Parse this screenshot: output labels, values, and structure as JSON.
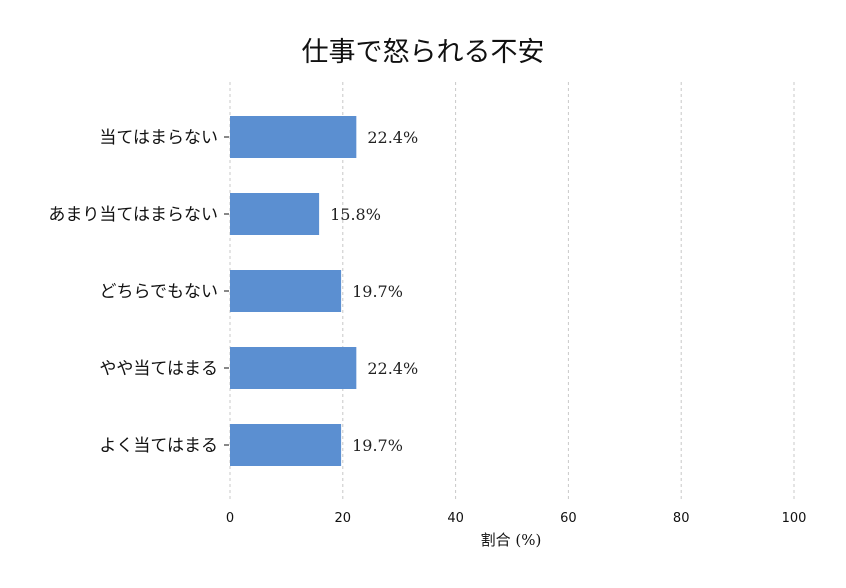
{
  "chart_data": {
    "type": "bar",
    "orientation": "horizontal",
    "title": "仕事で怒られる不安",
    "xlabel": "割合 (%)",
    "ylabel": "",
    "categories": [
      "当てはまらない",
      "あまり当てはまらない",
      "どちらでもない",
      "やや当てはまる",
      "よく当てはまる"
    ],
    "values": [
      22.4,
      15.8,
      19.7,
      22.4,
      19.7
    ],
    "value_labels": [
      "22.4%",
      "15.8%",
      "19.7%",
      "22.4%",
      "19.7%"
    ],
    "xlim": [
      0,
      100
    ],
    "xticks": [
      0,
      20,
      40,
      60,
      80,
      100
    ],
    "grid": true,
    "bar_color": "#5b8fd1"
  }
}
